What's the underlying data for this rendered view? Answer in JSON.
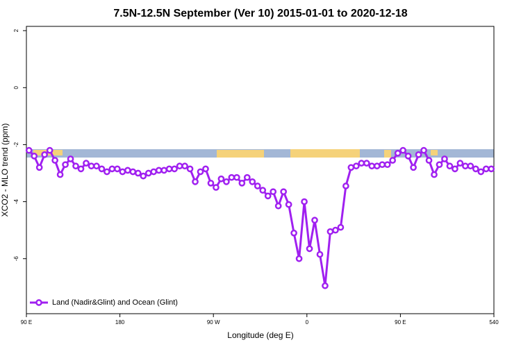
{
  "chart_data": {
    "type": "line",
    "title": "7.5N-12.5N September (Ver 10)   2015-01-01 to 2020-12-18",
    "x_label": "Longitude (deg E)",
    "y_label": "XCO2 - MLO trend (ppm)",
    "color": "#a020f0",
    "xlim": [
      90,
      540
    ],
    "xticks": [
      {
        "value": 90,
        "label": "90 E"
      },
      180,
      {
        "value": 270,
        "label": "90 W"
      },
      {
        "value": 360,
        "label": "0"
      },
      {
        "value": 450,
        "label": "90 E"
      },
      540
    ],
    "ylim": [
      -7.93,
      2.15
    ],
    "yticks": [
      -6,
      -4,
      -2,
      0,
      2
    ],
    "x": [
      92.5,
      97.5,
      102.5,
      107.5,
      112.5,
      117.5,
      122.5,
      127.5,
      132.5,
      137.5,
      142.5,
      147.5,
      152.5,
      157.5,
      162.5,
      167.5,
      172.5,
      177.5,
      182.5,
      187.5,
      192.5,
      197.5,
      202.5,
      207.5,
      212.5,
      217.5,
      222.5,
      227.5,
      232.5,
      237.5,
      242.5,
      247.5,
      252.5,
      257.5,
      262.5,
      267.5,
      272.5,
      277.5,
      282.5,
      287.5,
      292.5,
      297.5,
      302.5,
      307.5,
      312.5,
      317.5,
      322.5,
      327.5,
      332.5,
      337.5,
      342.5,
      347.5,
      352.5,
      357.5,
      362.5,
      367.5,
      372.5,
      377.5,
      382.5,
      387.5,
      392.5,
      397.5,
      402.5,
      407.5,
      412.5,
      417.5,
      422.5,
      427.5,
      432.5,
      437.5,
      442.5,
      447.5,
      452.5,
      457.5,
      462.5,
      467.5,
      472.5,
      477.5,
      482.5,
      487.5,
      492.5,
      497.5,
      502.5,
      507.5,
      512.5,
      517.5,
      522.5,
      527.5,
      532.5,
      537.5
    ],
    "series": [
      {
        "name": "Land (Nadir&Glint) and Ocean (Glint)",
        "color": "#a020f0",
        "values": [
          -2.2,
          -2.4,
          -2.8,
          -2.35,
          -2.2,
          -2.55,
          -3.05,
          -2.7,
          -2.5,
          -2.75,
          -2.85,
          -2.65,
          -2.75,
          -2.75,
          -2.85,
          -2.95,
          -2.85,
          -2.85,
          -2.95,
          -2.9,
          -2.95,
          -3.0,
          -3.1,
          -3.0,
          -2.95,
          -2.9,
          -2.9,
          -2.85,
          -2.85,
          -2.75,
          -2.75,
          -2.85,
          -3.3,
          -2.95,
          -2.85,
          -3.35,
          -3.5,
          -3.2,
          -3.3,
          -3.15,
          -3.15,
          -3.35,
          -3.15,
          -3.3,
          -3.45,
          -3.6,
          -3.8,
          -3.65,
          -4.15,
          -3.65,
          -4.1,
          -5.1,
          -6.0,
          -4.0,
          -5.65,
          -4.65,
          -5.85,
          -6.95,
          -5.05,
          -5.0,
          -4.9,
          -3.45,
          -2.8,
          -2.75,
          -2.65,
          -2.65,
          -2.75,
          -2.75,
          -2.7,
          -2.7,
          -2.55,
          -2.3,
          -2.2,
          -2.4,
          -2.8,
          -2.35,
          -2.2,
          -2.55,
          -3.05,
          -2.7,
          -2.5,
          -2.75,
          -2.85,
          -2.65,
          -2.75,
          -2.75,
          -2.85,
          -2.95,
          -2.85,
          -2.85
        ]
      }
    ],
    "legend": "bottom-left"
  }
}
